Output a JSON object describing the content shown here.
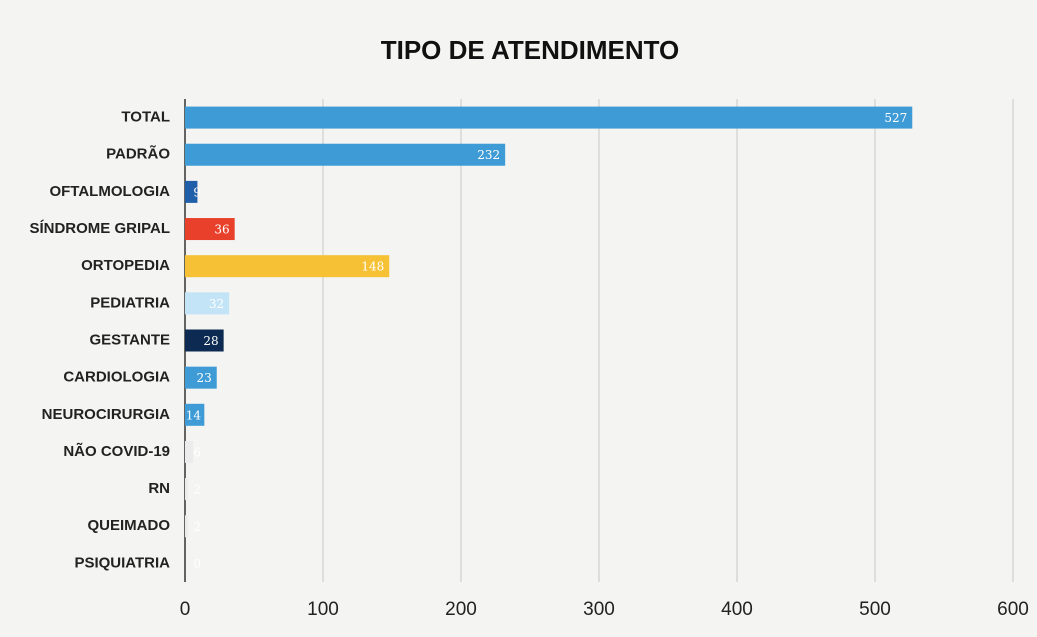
{
  "chart_data": {
    "type": "hbar",
    "title": "TIPO DE ATENDIMENTO",
    "categories": [
      "TOTAL",
      "PADRÃO",
      "OFTALMOLOGIA",
      "SÍNDROME GRIPAL",
      "ORTOPEDIA",
      "PEDIATRIA",
      "GESTANTE",
      "CARDIOLOGIA",
      "NEUROCIRURGIA",
      "NÃO COVID-19",
      "RN",
      "QUEIMADO",
      "PSIQUIATRIA"
    ],
    "values": [
      527,
      232,
      9,
      36,
      148,
      32,
      28,
      23,
      14,
      6,
      2,
      2,
      0
    ],
    "colors": [
      "#3e9bd6",
      "#3e9bd6",
      "#1f5ea8",
      "#e8402b",
      "#f6c134",
      "#c3e4f6",
      "#0d2b52",
      "#3e9bd6",
      "#3e9bd6",
      "#ececec",
      "#ececec",
      "#ececec",
      "#ececec"
    ],
    "xlim": [
      0,
      600
    ],
    "xticks": [
      0,
      100,
      200,
      300,
      400,
      500,
      600
    ],
    "grid": true
  }
}
